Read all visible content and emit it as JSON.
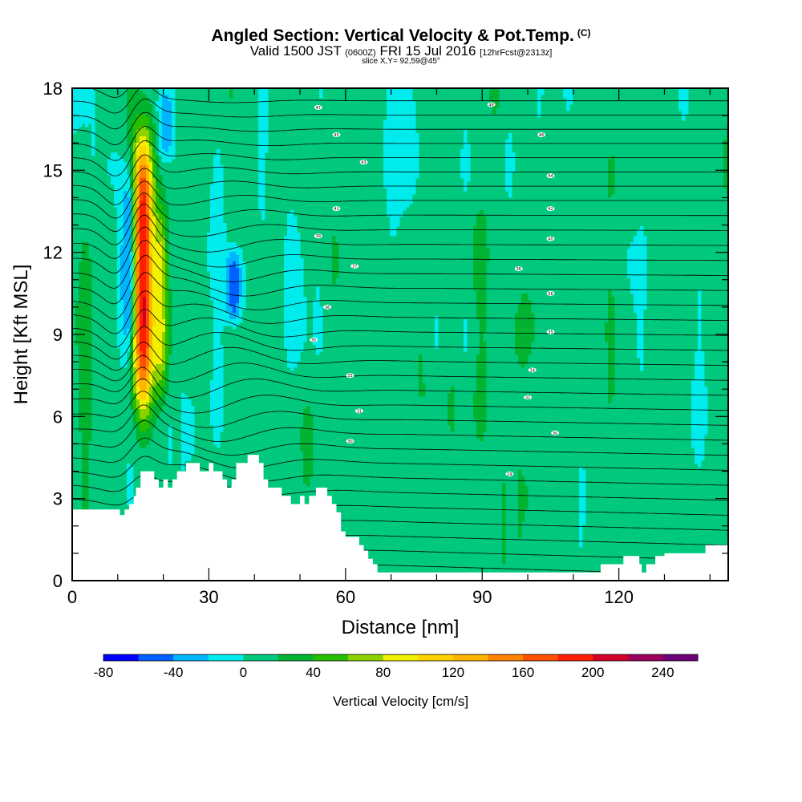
{
  "header": {
    "title": "Angled Section: Vertical Velocity & Pot.Temp.",
    "title_units": "(C)",
    "valid_prefix": "Valid 1500 JST",
    "valid_zulu": "(0600Z)",
    "valid_date": "FRI 15 Jul 2016",
    "forecast": "[12hrFcst@2313z]",
    "slice": "slice X,Y= 92,59@45°"
  },
  "chart_data": {
    "type": "heatmap",
    "title": "Angled Section: Vertical Velocity & Pot.Temp.",
    "xlabel": "Distance [nm]",
    "ylabel": "Height [Kft MSL]",
    "xlim": [
      0,
      144
    ],
    "ylim": [
      0,
      18
    ],
    "x_ticks": [
      "0",
      "30",
      "60",
      "90",
      "120"
    ],
    "x_tick_values": [
      0,
      30,
      60,
      90,
      120
    ],
    "y_ticks": [
      "0",
      "3",
      "6",
      "9",
      "12",
      "15",
      "18"
    ],
    "y_tick_values": [
      0,
      3,
      6,
      9,
      12,
      15,
      18
    ],
    "colorbar": {
      "title": "Vertical Velocity [cm/s]",
      "tick_labels": [
        "-80",
        "-40",
        "0",
        "40",
        "80",
        "120",
        "160",
        "200",
        "240"
      ],
      "tick_values": [
        -80,
        -40,
        0,
        40,
        80,
        120,
        160,
        200,
        240
      ],
      "bins": [
        -80,
        -60,
        -40,
        -20,
        0,
        20,
        40,
        60,
        80,
        100,
        120,
        140,
        160,
        180,
        200,
        220,
        240,
        260
      ],
      "colors": [
        "#0000ff",
        "#0060ff",
        "#00b4ff",
        "#00ecec",
        "#00c87c",
        "#00b432",
        "#28be00",
        "#8cd200",
        "#f0f000",
        "#ffd200",
        "#ffb400",
        "#ff8200",
        "#ff5000",
        "#ff1e00",
        "#d20028",
        "#9b005a",
        "#6e0078"
      ]
    },
    "terrain_kft": [
      [
        0,
        2.6
      ],
      [
        2,
        2.6
      ],
      [
        4,
        2.6
      ],
      [
        6,
        2.6
      ],
      [
        8,
        2.6
      ],
      [
        10,
        2.6
      ],
      [
        10.5,
        2.4
      ],
      [
        11.5,
        2.6
      ],
      [
        12,
        2.6
      ],
      [
        12.5,
        2.8
      ],
      [
        13.5,
        3.1
      ],
      [
        14,
        3.4
      ],
      [
        15,
        4.0
      ],
      [
        17,
        4.0
      ],
      [
        18,
        3.7
      ],
      [
        19,
        3.4
      ],
      [
        20,
        3.7
      ],
      [
        21,
        3.4
      ],
      [
        22,
        3.7
      ],
      [
        23,
        4.0
      ],
      [
        25,
        4.3
      ],
      [
        27,
        4.3
      ],
      [
        28,
        4.0
      ],
      [
        30,
        4.3
      ],
      [
        31,
        4.0
      ],
      [
        33,
        3.7
      ],
      [
        34,
        3.4
      ],
      [
        35,
        3.7
      ],
      [
        36,
        4.3
      ],
      [
        38,
        4.3
      ],
      [
        38.5,
        4.6
      ],
      [
        40,
        4.6
      ],
      [
        41,
        4.3
      ],
      [
        42,
        3.7
      ],
      [
        43,
        3.4
      ],
      [
        45,
        3.4
      ],
      [
        46,
        3.1
      ],
      [
        47,
        3.1
      ],
      [
        48,
        2.8
      ],
      [
        49,
        2.8
      ],
      [
        50,
        3.1
      ],
      [
        51,
        2.8
      ],
      [
        52,
        3.1
      ],
      [
        53,
        3.1
      ],
      [
        53.5,
        3.4
      ],
      [
        55,
        3.4
      ],
      [
        56,
        3.1
      ],
      [
        57,
        2.8
      ],
      [
        58,
        2.5
      ],
      [
        59,
        1.8
      ],
      [
        60,
        1.6
      ],
      [
        62,
        1.6
      ],
      [
        63,
        1.3
      ],
      [
        64,
        1.1
      ],
      [
        65,
        0.8
      ],
      [
        66,
        0.6
      ],
      [
        67,
        0.3
      ],
      [
        80,
        0.3
      ],
      [
        100,
        0.3
      ],
      [
        115,
        0.3
      ],
      [
        116,
        0.6
      ],
      [
        120,
        0.6
      ],
      [
        121,
        0.9
      ],
      [
        124,
        0.9
      ],
      [
        124.5,
        0.6
      ],
      [
        125,
        0.3
      ],
      [
        126,
        0.6
      ],
      [
        128,
        0.9
      ],
      [
        130,
        1.0
      ],
      [
        138,
        1.0
      ],
      [
        139,
        1.3
      ],
      [
        144,
        1.3
      ]
    ],
    "features": [
      {
        "name": "updraft core",
        "x": 15.5,
        "y_bottom": 6.5,
        "y_top": 16.0,
        "peak": 200
      },
      {
        "name": "secondary updraft",
        "x": 19.5,
        "y_bottom": 7.0,
        "y_top": 13.5,
        "peak": 80
      },
      {
        "name": "downdraft west",
        "x": 12.5,
        "y_bottom": 8.5,
        "y_top": 15.0,
        "peak": -60
      },
      {
        "name": "downdraft upper",
        "x": 20.5,
        "y_bottom": 15.5,
        "y_top": 18.0,
        "peak": -40
      },
      {
        "name": "downdraft mid",
        "x": 35.5,
        "y_bottom": 9.5,
        "y_top": 12.0,
        "peak": -60
      }
    ],
    "theta_contour_labels": [
      {
        "text": "29",
        "x": 96,
        "y": 3.9
      },
      {
        "text": "30",
        "x": 61,
        "y": 5.1
      },
      {
        "text": "30",
        "x": 106,
        "y": 5.4
      },
      {
        "text": "31",
        "x": 63,
        "y": 6.2
      },
      {
        "text": "32",
        "x": 100,
        "y": 6.7
      },
      {
        "text": "33",
        "x": 61,
        "y": 7.5
      },
      {
        "text": "34",
        "x": 101,
        "y": 7.7
      },
      {
        "text": "35",
        "x": 53,
        "y": 8.8
      },
      {
        "text": "35",
        "x": 105,
        "y": 9.1
      },
      {
        "text": "36",
        "x": 56,
        "y": 10.0
      },
      {
        "text": "36",
        "x": 105,
        "y": 10.5
      },
      {
        "text": "37",
        "x": 62,
        "y": 11.5
      },
      {
        "text": "38",
        "x": 98,
        "y": 11.4
      },
      {
        "text": "39",
        "x": 54,
        "y": 12.6
      },
      {
        "text": "40",
        "x": 105,
        "y": 12.5
      },
      {
        "text": "41",
        "x": 58,
        "y": 13.6
      },
      {
        "text": "42",
        "x": 105,
        "y": 13.6
      },
      {
        "text": "43",
        "x": 64,
        "y": 15.3
      },
      {
        "text": "44",
        "x": 105,
        "y": 14.8
      },
      {
        "text": "45",
        "x": 58,
        "y": 16.3
      },
      {
        "text": "46",
        "x": 103,
        "y": 16.3
      },
      {
        "text": "47",
        "x": 54,
        "y": 17.3
      },
      {
        "text": "48",
        "x": 92,
        "y": 17.4
      }
    ]
  }
}
